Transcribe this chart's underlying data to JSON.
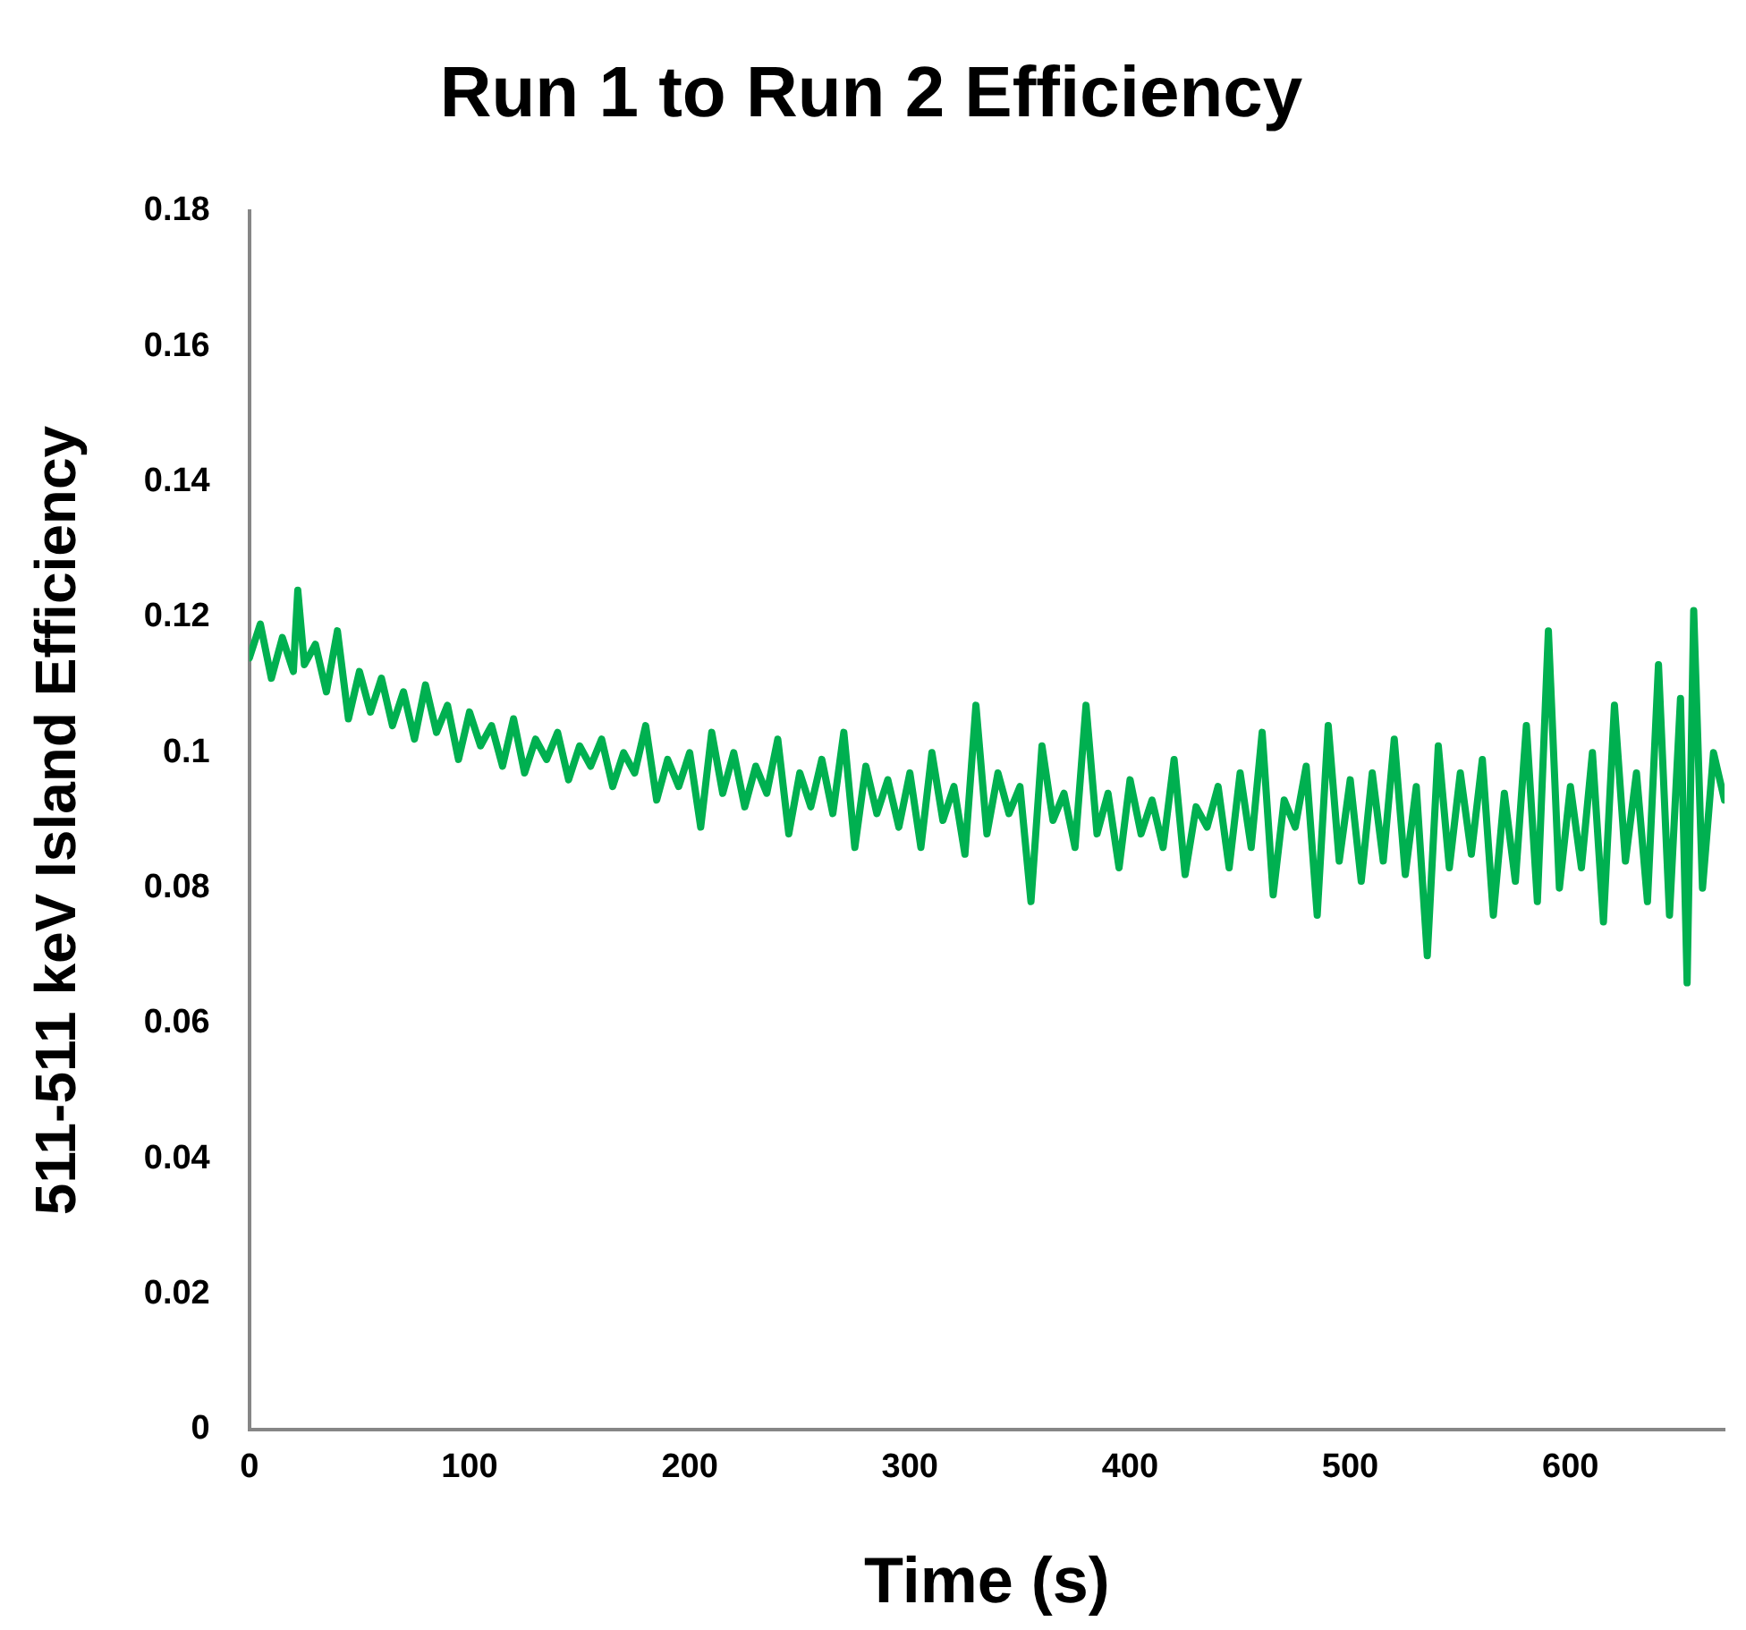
{
  "chart_data": {
    "type": "line",
    "title": "Run 1 to Run 2 Efficiency",
    "xlabel": "Time (s)",
    "ylabel": "511-511 keV Island Efficiency",
    "xlim": [
      0,
      670
    ],
    "xticks": [
      0,
      100,
      200,
      300,
      400,
      500,
      600
    ],
    "ylim": [
      0,
      0.18
    ],
    "yticks": [
      0,
      0.02,
      0.04,
      0.06,
      0.08,
      0.1,
      0.12,
      0.14,
      0.16,
      0.18
    ],
    "grid": false,
    "marker": "none",
    "line_style": "solid",
    "x": [
      0,
      5,
      10,
      15,
      20,
      22,
      25,
      30,
      35,
      40,
      45,
      50,
      55,
      60,
      65,
      70,
      75,
      80,
      85,
      90,
      95,
      100,
      105,
      110,
      115,
      120,
      125,
      130,
      135,
      140,
      145,
      150,
      155,
      160,
      165,
      170,
      175,
      180,
      185,
      190,
      195,
      200,
      205,
      210,
      215,
      220,
      225,
      230,
      235,
      240,
      245,
      250,
      255,
      260,
      265,
      270,
      275,
      280,
      285,
      290,
      295,
      300,
      305,
      310,
      315,
      320,
      325,
      330,
      335,
      340,
      345,
      350,
      355,
      360,
      365,
      370,
      375,
      380,
      385,
      390,
      395,
      400,
      405,
      410,
      415,
      420,
      425,
      430,
      435,
      440,
      445,
      450,
      455,
      460,
      465,
      470,
      475,
      480,
      485,
      490,
      495,
      500,
      505,
      510,
      515,
      520,
      525,
      530,
      535,
      540,
      545,
      550,
      555,
      560,
      565,
      570,
      575,
      580,
      585,
      590,
      595,
      600,
      605,
      610,
      615,
      620,
      625,
      630,
      635,
      640,
      645,
      650,
      653,
      656,
      660,
      665,
      670
    ],
    "series": [
      {
        "color": "#00b050",
        "values": [
          0.114,
          0.119,
          0.111,
          0.117,
          0.112,
          0.124,
          0.113,
          0.116,
          0.109,
          0.118,
          0.105,
          0.112,
          0.106,
          0.111,
          0.104,
          0.109,
          0.102,
          0.11,
          0.103,
          0.107,
          0.099,
          0.106,
          0.101,
          0.104,
          0.098,
          0.105,
          0.097,
          0.102,
          0.099,
          0.103,
          0.096,
          0.101,
          0.098,
          0.102,
          0.095,
          0.1,
          0.097,
          0.104,
          0.093,
          0.099,
          0.095,
          0.1,
          0.089,
          0.103,
          0.094,
          0.1,
          0.092,
          0.098,
          0.094,
          0.102,
          0.088,
          0.097,
          0.092,
          0.099,
          0.091,
          0.103,
          0.086,
          0.098,
          0.091,
          0.096,
          0.089,
          0.097,
          0.086,
          0.1,
          0.09,
          0.095,
          0.085,
          0.107,
          0.088,
          0.097,
          0.091,
          0.095,
          0.078,
          0.101,
          0.09,
          0.094,
          0.086,
          0.107,
          0.088,
          0.094,
          0.083,
          0.096,
          0.088,
          0.093,
          0.086,
          0.099,
          0.082,
          0.092,
          0.089,
          0.095,
          0.083,
          0.097,
          0.086,
          0.103,
          0.079,
          0.093,
          0.089,
          0.098,
          0.076,
          0.104,
          0.084,
          0.096,
          0.081,
          0.097,
          0.084,
          0.102,
          0.082,
          0.095,
          0.07,
          0.101,
          0.083,
          0.097,
          0.085,
          0.099,
          0.076,
          0.094,
          0.081,
          0.104,
          0.078,
          0.118,
          0.08,
          0.095,
          0.083,
          0.1,
          0.075,
          0.107,
          0.084,
          0.097,
          0.078,
          0.113,
          0.076,
          0.108,
          0.066,
          0.121,
          0.08,
          0.1,
          0.093
        ]
      }
    ]
  }
}
